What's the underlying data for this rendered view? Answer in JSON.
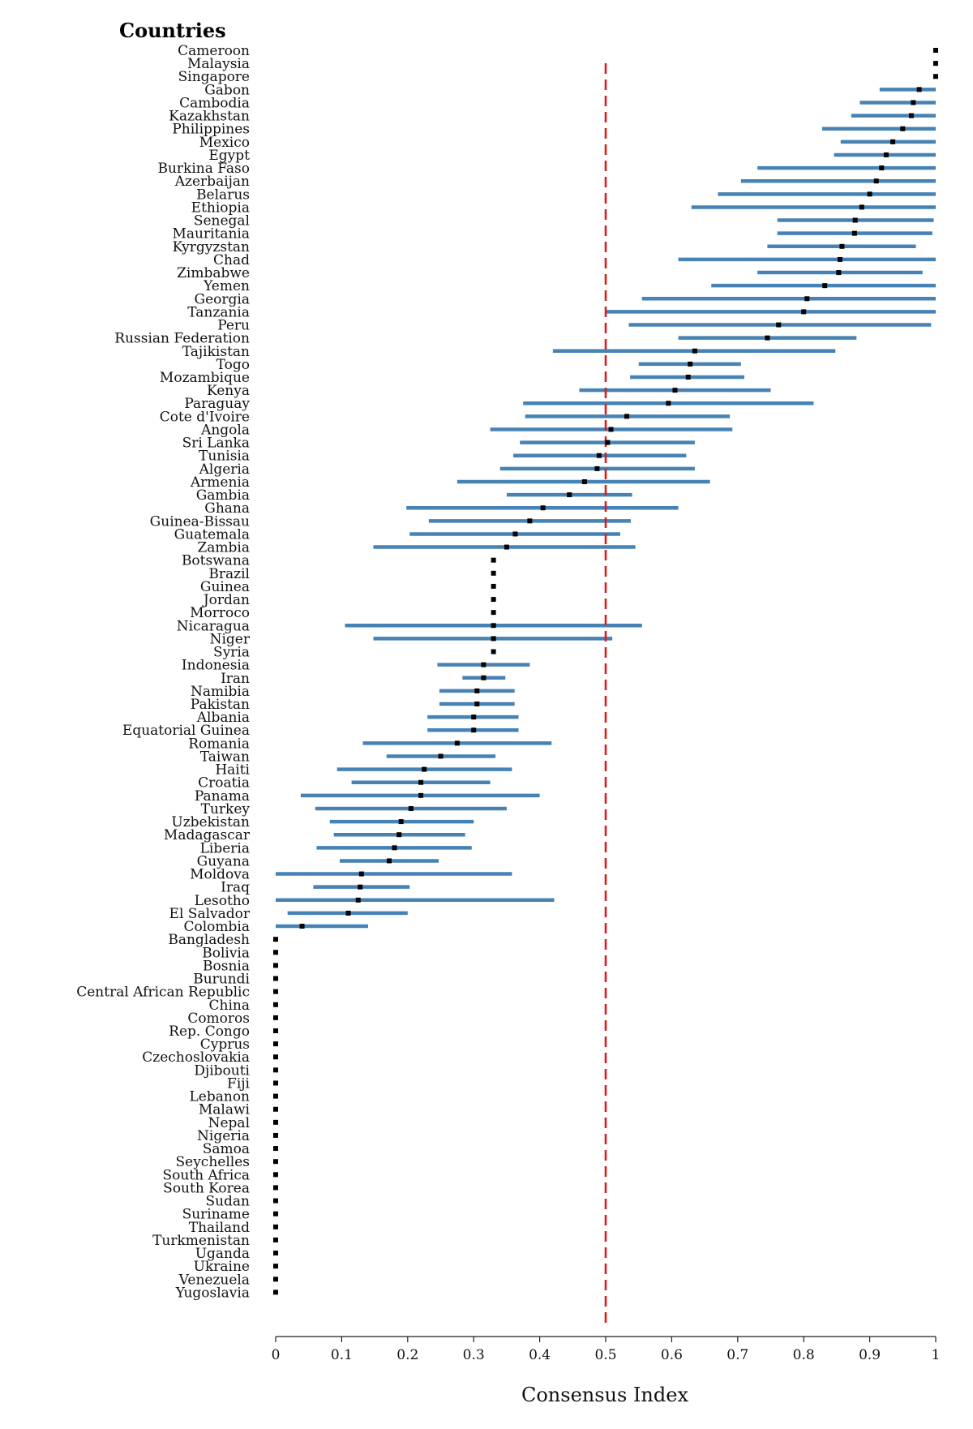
{
  "chart_data": {
    "type": "dot-interval",
    "title": "Countries",
    "xlabel": "Consensus Index",
    "xlim": [
      0,
      1
    ],
    "xticks": [
      0,
      0.1,
      0.2,
      0.3,
      0.4,
      0.5,
      0.6,
      0.7,
      0.8,
      0.9,
      1
    ],
    "xtick_labels": [
      "0",
      "0.1",
      "0.2",
      "0.3",
      "0.4",
      "0.5",
      "0.6",
      "0.7",
      "0.8",
      "0.9",
      "1"
    ],
    "reference_line": {
      "x": 0.5,
      "style": "dashed",
      "color": "#d42020"
    },
    "colors": {
      "interval": "#4682b4",
      "point": "#000000"
    },
    "countries": [
      {
        "name": "Cameroon",
        "value": 1.0,
        "low": null,
        "high": null
      },
      {
        "name": "Malaysia",
        "value": 1.0,
        "low": null,
        "high": null
      },
      {
        "name": "Singapore",
        "value": 1.0,
        "low": null,
        "high": null
      },
      {
        "name": "Gabon",
        "value": 0.975,
        "low": 0.915,
        "high": 1.0
      },
      {
        "name": "Cambodia",
        "value": 0.966,
        "low": 0.885,
        "high": 1.0
      },
      {
        "name": "Kazakhstan",
        "value": 0.963,
        "low": 0.872,
        "high": 1.0
      },
      {
        "name": "Philippines",
        "value": 0.95,
        "low": 0.828,
        "high": 1.0
      },
      {
        "name": "Mexico",
        "value": 0.935,
        "low": 0.856,
        "high": 1.0
      },
      {
        "name": "Egypt",
        "value": 0.925,
        "low": 0.846,
        "high": 1.0
      },
      {
        "name": "Burkina Faso",
        "value": 0.918,
        "low": 0.73,
        "high": 1.0
      },
      {
        "name": "Azerbaijan",
        "value": 0.91,
        "low": 0.705,
        "high": 1.0
      },
      {
        "name": "Belarus",
        "value": 0.9,
        "low": 0.67,
        "high": 1.0
      },
      {
        "name": "Ethiopia",
        "value": 0.888,
        "low": 0.63,
        "high": 1.0
      },
      {
        "name": "Senegal",
        "value": 0.878,
        "low": 0.76,
        "high": 0.997
      },
      {
        "name": "Mauritania",
        "value": 0.877,
        "low": 0.76,
        "high": 0.995
      },
      {
        "name": "Kyrgyzstan",
        "value": 0.858,
        "low": 0.745,
        "high": 0.97
      },
      {
        "name": "Chad",
        "value": 0.855,
        "low": 0.61,
        "high": 1.0
      },
      {
        "name": "Zimbabwe",
        "value": 0.853,
        "low": 0.73,
        "high": 0.98
      },
      {
        "name": "Yemen",
        "value": 0.832,
        "low": 0.66,
        "high": 1.0
      },
      {
        "name": "Georgia",
        "value": 0.805,
        "low": 0.555,
        "high": 1.0
      },
      {
        "name": "Tanzania",
        "value": 0.8,
        "low": 0.5,
        "high": 1.0
      },
      {
        "name": "Peru",
        "value": 0.762,
        "low": 0.535,
        "high": 0.993
      },
      {
        "name": "Russian Federation",
        "value": 0.745,
        "low": 0.61,
        "high": 0.88
      },
      {
        "name": "Tajikistan",
        "value": 0.635,
        "low": 0.42,
        "high": 0.848
      },
      {
        "name": "Togo",
        "value": 0.628,
        "low": 0.55,
        "high": 0.705
      },
      {
        "name": "Mozambique",
        "value": 0.625,
        "low": 0.537,
        "high": 0.71
      },
      {
        "name": "Kenya",
        "value": 0.605,
        "low": 0.46,
        "high": 0.75
      },
      {
        "name": "Paraguay",
        "value": 0.595,
        "low": 0.375,
        "high": 0.815
      },
      {
        "name": "Cote d'Ivoire",
        "value": 0.532,
        "low": 0.378,
        "high": 0.688
      },
      {
        "name": "Angola",
        "value": 0.508,
        "low": 0.325,
        "high": 0.692
      },
      {
        "name": "Sri Lanka",
        "value": 0.503,
        "low": 0.37,
        "high": 0.635
      },
      {
        "name": "Tunisia",
        "value": 0.49,
        "low": 0.36,
        "high": 0.622
      },
      {
        "name": "Algeria",
        "value": 0.487,
        "low": 0.34,
        "high": 0.635
      },
      {
        "name": "Armenia",
        "value": 0.468,
        "low": 0.275,
        "high": 0.658
      },
      {
        "name": "Gambia",
        "value": 0.445,
        "low": 0.35,
        "high": 0.54
      },
      {
        "name": "Ghana",
        "value": 0.405,
        "low": 0.198,
        "high": 0.61
      },
      {
        "name": "Guinea-Bissau",
        "value": 0.385,
        "low": 0.232,
        "high": 0.538
      },
      {
        "name": "Guatemala",
        "value": 0.363,
        "low": 0.203,
        "high": 0.522
      },
      {
        "name": "Zambia",
        "value": 0.35,
        "low": 0.148,
        "high": 0.545
      },
      {
        "name": "Botswana",
        "value": 0.33,
        "low": null,
        "high": null
      },
      {
        "name": "Brazil",
        "value": 0.33,
        "low": null,
        "high": null
      },
      {
        "name": "Guinea",
        "value": 0.33,
        "low": null,
        "high": null
      },
      {
        "name": "Jordan",
        "value": 0.33,
        "low": null,
        "high": null
      },
      {
        "name": "Morroco",
        "value": 0.33,
        "low": null,
        "high": null
      },
      {
        "name": "Nicaragua",
        "value": 0.33,
        "low": 0.105,
        "high": 0.555
      },
      {
        "name": "Niger",
        "value": 0.33,
        "low": 0.148,
        "high": 0.51
      },
      {
        "name": "Syria",
        "value": 0.33,
        "low": null,
        "high": null
      },
      {
        "name": "Indonesia",
        "value": 0.315,
        "low": 0.245,
        "high": 0.385
      },
      {
        "name": "Iran",
        "value": 0.315,
        "low": 0.283,
        "high": 0.348
      },
      {
        "name": "Namibia",
        "value": 0.305,
        "low": 0.248,
        "high": 0.362
      },
      {
        "name": "Pakistan",
        "value": 0.305,
        "low": 0.248,
        "high": 0.362
      },
      {
        "name": "Albania",
        "value": 0.3,
        "low": 0.23,
        "high": 0.368
      },
      {
        "name": "Equatorial Guinea",
        "value": 0.3,
        "low": 0.23,
        "high": 0.368
      },
      {
        "name": "Romania",
        "value": 0.275,
        "low": 0.132,
        "high": 0.418
      },
      {
        "name": "Taiwan",
        "value": 0.25,
        "low": 0.168,
        "high": 0.333
      },
      {
        "name": "Haiti",
        "value": 0.225,
        "low": 0.093,
        "high": 0.358
      },
      {
        "name": "Croatia",
        "value": 0.22,
        "low": 0.115,
        "high": 0.325
      },
      {
        "name": "Panama",
        "value": 0.22,
        "low": 0.038,
        "high": 0.4
      },
      {
        "name": "Turkey",
        "value": 0.205,
        "low": 0.06,
        "high": 0.35
      },
      {
        "name": "Uzbekistan",
        "value": 0.19,
        "low": 0.082,
        "high": 0.3
      },
      {
        "name": "Madagascar",
        "value": 0.187,
        "low": 0.088,
        "high": 0.287
      },
      {
        "name": "Liberia",
        "value": 0.18,
        "low": 0.062,
        "high": 0.297
      },
      {
        "name": "Guyana",
        "value": 0.172,
        "low": 0.097,
        "high": 0.247
      },
      {
        "name": "Moldova",
        "value": 0.13,
        "low": 0.0,
        "high": 0.358
      },
      {
        "name": "Iraq",
        "value": 0.128,
        "low": 0.057,
        "high": 0.203
      },
      {
        "name": "Lesotho",
        "value": 0.125,
        "low": 0.0,
        "high": 0.422
      },
      {
        "name": "El Salvador",
        "value": 0.11,
        "low": 0.018,
        "high": 0.2
      },
      {
        "name": "Colombia",
        "value": 0.04,
        "low": 0.0,
        "high": 0.14
      },
      {
        "name": "Bangladesh",
        "value": 0.0,
        "low": null,
        "high": null
      },
      {
        "name": "Bolivia",
        "value": 0.0,
        "low": null,
        "high": null
      },
      {
        "name": "Bosnia",
        "value": 0.0,
        "low": null,
        "high": null
      },
      {
        "name": "Burundi",
        "value": 0.0,
        "low": null,
        "high": null
      },
      {
        "name": "Central African Republic",
        "value": 0.0,
        "low": null,
        "high": null
      },
      {
        "name": "China",
        "value": 0.0,
        "low": null,
        "high": null
      },
      {
        "name": "Comoros",
        "value": 0.0,
        "low": null,
        "high": null
      },
      {
        "name": "Rep. Congo",
        "value": 0.0,
        "low": null,
        "high": null
      },
      {
        "name": "Cyprus",
        "value": 0.0,
        "low": null,
        "high": null
      },
      {
        "name": "Czechoslovakia",
        "value": 0.0,
        "low": null,
        "high": null
      },
      {
        "name": "Djibouti",
        "value": 0.0,
        "low": null,
        "high": null
      },
      {
        "name": "Fiji",
        "value": 0.0,
        "low": null,
        "high": null
      },
      {
        "name": "Lebanon",
        "value": 0.0,
        "low": null,
        "high": null
      },
      {
        "name": "Malawi",
        "value": 0.0,
        "low": null,
        "high": null
      },
      {
        "name": "Nepal",
        "value": 0.0,
        "low": null,
        "high": null
      },
      {
        "name": "Nigeria",
        "value": 0.0,
        "low": null,
        "high": null
      },
      {
        "name": "Samoa",
        "value": 0.0,
        "low": null,
        "high": null
      },
      {
        "name": "Seychelles",
        "value": 0.0,
        "low": null,
        "high": null
      },
      {
        "name": "South Africa",
        "value": 0.0,
        "low": null,
        "high": null
      },
      {
        "name": "South Korea",
        "value": 0.0,
        "low": null,
        "high": null
      },
      {
        "name": "Sudan",
        "value": 0.0,
        "low": null,
        "high": null
      },
      {
        "name": "Suriname",
        "value": 0.0,
        "low": null,
        "high": null
      },
      {
        "name": "Thailand",
        "value": 0.0,
        "low": null,
        "high": null
      },
      {
        "name": "Turkmenistan",
        "value": 0.0,
        "low": null,
        "high": null
      },
      {
        "name": "Uganda",
        "value": 0.0,
        "low": null,
        "high": null
      },
      {
        "name": "Ukraine",
        "value": 0.0,
        "low": null,
        "high": null
      },
      {
        "name": "Venezuela",
        "value": 0.0,
        "low": null,
        "high": null
      },
      {
        "name": "Yugoslavia",
        "value": 0.0,
        "low": null,
        "high": null
      }
    ]
  }
}
